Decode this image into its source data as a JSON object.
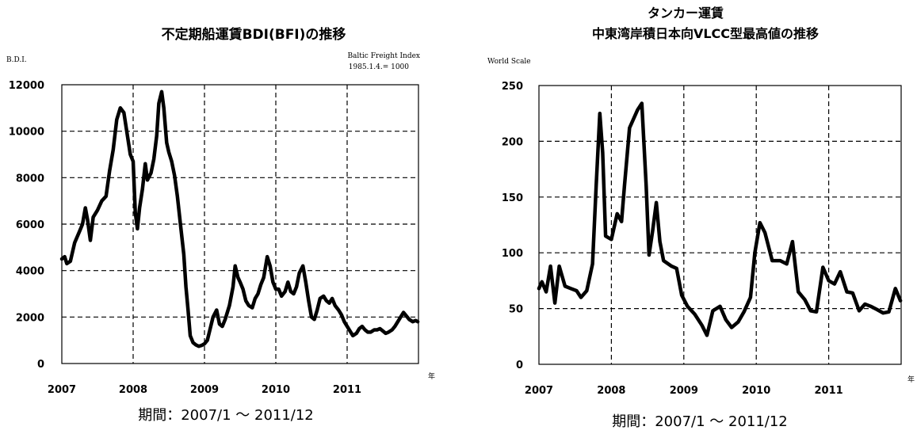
{
  "chart_data": [
    {
      "type": "line",
      "title": "不定期船運賃BDI(BFI)の推移",
      "ylabel": "B.D.I.",
      "annotation_line1": "Baltic Freight Index",
      "annotation_line2": "1985.1.4.= 1000",
      "x_unit_label": "年",
      "period_label": "期間：2007/1 ～ 2011/12",
      "xlim": [
        2007,
        2012
      ],
      "ylim": [
        0,
        12000
      ],
      "grid": "dashed",
      "x_ticks": [
        2007,
        2008,
        2009,
        2010,
        2011
      ],
      "x_tick_labels": [
        "2007",
        "2008",
        "2009",
        "2010",
        "2011"
      ],
      "y_ticks": [
        0,
        2000,
        4000,
        6000,
        8000,
        10000,
        12000
      ],
      "y_tick_labels": [
        "0",
        "2000",
        "4000",
        "6000",
        "8000",
        "10000",
        "12000"
      ],
      "series": [
        {
          "color": "#000000",
          "points": [
            [
              2007.0,
              4500
            ],
            [
              2007.04,
              4600
            ],
            [
              2007.07,
              4300
            ],
            [
              2007.12,
              4400
            ],
            [
              2007.18,
              5200
            ],
            [
              2007.25,
              5700
            ],
            [
              2007.29,
              6000
            ],
            [
              2007.33,
              6700
            ],
            [
              2007.36,
              6200
            ],
            [
              2007.4,
              5300
            ],
            [
              2007.44,
              6300
            ],
            [
              2007.5,
              6600
            ],
            [
              2007.56,
              7000
            ],
            [
              2007.62,
              7200
            ],
            [
              2007.67,
              8300
            ],
            [
              2007.72,
              9200
            ],
            [
              2007.77,
              10500
            ],
            [
              2007.82,
              11000
            ],
            [
              2007.87,
              10800
            ],
            [
              2007.92,
              9800
            ],
            [
              2007.96,
              9000
            ],
            [
              2008.0,
              8700
            ],
            [
              2008.03,
              6500
            ],
            [
              2008.06,
              5800
            ],
            [
              2008.09,
              6700
            ],
            [
              2008.13,
              7500
            ],
            [
              2008.17,
              8600
            ],
            [
              2008.2,
              7900
            ],
            [
              2008.25,
              8200
            ],
            [
              2008.29,
              8800
            ],
            [
              2008.33,
              9800
            ],
            [
              2008.36,
              11200
            ],
            [
              2008.4,
              11700
            ],
            [
              2008.43,
              11000
            ],
            [
              2008.47,
              9500
            ],
            [
              2008.5,
              9100
            ],
            [
              2008.54,
              8700
            ],
            [
              2008.58,
              8100
            ],
            [
              2008.62,
              7200
            ],
            [
              2008.67,
              5800
            ],
            [
              2008.71,
              4700
            ],
            [
              2008.74,
              3300
            ],
            [
              2008.77,
              2300
            ],
            [
              2008.8,
              1200
            ],
            [
              2008.84,
              900
            ],
            [
              2008.88,
              800
            ],
            [
              2008.92,
              740
            ],
            [
              2008.96,
              780
            ],
            [
              2009.0,
              850
            ],
            [
              2009.04,
              1000
            ],
            [
              2009.08,
              1500
            ],
            [
              2009.12,
              2000
            ],
            [
              2009.17,
              2300
            ],
            [
              2009.21,
              1700
            ],
            [
              2009.25,
              1600
            ],
            [
              2009.29,
              1900
            ],
            [
              2009.35,
              2500
            ],
            [
              2009.4,
              3300
            ],
            [
              2009.43,
              4200
            ],
            [
              2009.47,
              3700
            ],
            [
              2009.5,
              3500
            ],
            [
              2009.54,
              3200
            ],
            [
              2009.58,
              2700
            ],
            [
              2009.62,
              2500
            ],
            [
              2009.67,
              2400
            ],
            [
              2009.71,
              2800
            ],
            [
              2009.75,
              3000
            ],
            [
              2009.79,
              3400
            ],
            [
              2009.83,
              3700
            ],
            [
              2009.88,
              4600
            ],
            [
              2009.92,
              4200
            ],
            [
              2009.96,
              3500
            ],
            [
              2010.0,
              3200
            ],
            [
              2010.04,
              3200
            ],
            [
              2010.08,
              2900
            ],
            [
              2010.13,
              3100
            ],
            [
              2010.17,
              3500
            ],
            [
              2010.21,
              3100
            ],
            [
              2010.25,
              3000
            ],
            [
              2010.29,
              3300
            ],
            [
              2010.33,
              3900
            ],
            [
              2010.38,
              4200
            ],
            [
              2010.42,
              3500
            ],
            [
              2010.46,
              2700
            ],
            [
              2010.5,
              2000
            ],
            [
              2010.54,
              1900
            ],
            [
              2010.58,
              2300
            ],
            [
              2010.62,
              2800
            ],
            [
              2010.67,
              2900
            ],
            [
              2010.71,
              2700
            ],
            [
              2010.75,
              2600
            ],
            [
              2010.79,
              2800
            ],
            [
              2010.83,
              2500
            ],
            [
              2010.88,
              2300
            ],
            [
              2010.92,
              2100
            ],
            [
              2010.96,
              1800
            ],
            [
              2011.0,
              1600
            ],
            [
              2011.04,
              1400
            ],
            [
              2011.08,
              1200
            ],
            [
              2011.13,
              1300
            ],
            [
              2011.17,
              1500
            ],
            [
              2011.21,
              1600
            ],
            [
              2011.25,
              1450
            ],
            [
              2011.29,
              1350
            ],
            [
              2011.33,
              1350
            ],
            [
              2011.38,
              1450
            ],
            [
              2011.42,
              1450
            ],
            [
              2011.46,
              1500
            ],
            [
              2011.5,
              1400
            ],
            [
              2011.54,
              1300
            ],
            [
              2011.58,
              1350
            ],
            [
              2011.63,
              1450
            ],
            [
              2011.67,
              1600
            ],
            [
              2011.71,
              1800
            ],
            [
              2011.75,
              2000
            ],
            [
              2011.79,
              2200
            ],
            [
              2011.83,
              2050
            ],
            [
              2011.87,
              1900
            ],
            [
              2011.92,
              1800
            ],
            [
              2011.96,
              1850
            ],
            [
              2011.99,
              1800
            ]
          ]
        }
      ]
    },
    {
      "type": "line",
      "title_line1": "タンカー運賃",
      "title_line2": "中東湾岸積日本向VLCC型最高値の推移",
      "ylabel": "World Scale",
      "x_unit_label": "年",
      "period_label": "期間：2007/1 ～ 2011/12",
      "xlim": [
        2007,
        2012
      ],
      "ylim": [
        0,
        250
      ],
      "grid": "dashed",
      "x_ticks": [
        2007,
        2008,
        2009,
        2010,
        2011
      ],
      "x_tick_labels": [
        "2007",
        "2008",
        "2009",
        "2010",
        "2011"
      ],
      "y_ticks": [
        0,
        50,
        100,
        150,
        200,
        250
      ],
      "y_tick_labels": [
        "0",
        "50",
        "100",
        "150",
        "200",
        "250"
      ],
      "series": [
        {
          "color": "#000000",
          "points": [
            [
              2007.0,
              68
            ],
            [
              2007.04,
              74
            ],
            [
              2007.1,
              65
            ],
            [
              2007.16,
              88
            ],
            [
              2007.22,
              55
            ],
            [
              2007.28,
              88
            ],
            [
              2007.36,
              70
            ],
            [
              2007.44,
              68
            ],
            [
              2007.52,
              66
            ],
            [
              2007.58,
              60
            ],
            [
              2007.66,
              66
            ],
            [
              2007.74,
              90
            ],
            [
              2007.79,
              160
            ],
            [
              2007.84,
              225
            ],
            [
              2007.88,
              190
            ],
            [
              2007.92,
              115
            ],
            [
              2008.0,
              112
            ],
            [
              2008.08,
              135
            ],
            [
              2008.14,
              128
            ],
            [
              2008.18,
              160
            ],
            [
              2008.25,
              212
            ],
            [
              2008.36,
              228
            ],
            [
              2008.42,
              234
            ],
            [
              2008.48,
              160
            ],
            [
              2008.52,
              98
            ],
            [
              2008.57,
              120
            ],
            [
              2008.62,
              145
            ],
            [
              2008.67,
              110
            ],
            [
              2008.72,
              93
            ],
            [
              2008.83,
              88
            ],
            [
              2008.9,
              86
            ],
            [
              2008.97,
              62
            ],
            [
              2009.05,
              52
            ],
            [
              2009.15,
              45
            ],
            [
              2009.25,
              35
            ],
            [
              2009.32,
              26
            ],
            [
              2009.4,
              48
            ],
            [
              2009.5,
              52
            ],
            [
              2009.58,
              40
            ],
            [
              2009.66,
              33
            ],
            [
              2009.75,
              38
            ],
            [
              2009.83,
              47
            ],
            [
              2009.92,
              60
            ],
            [
              2009.98,
              100
            ],
            [
              2010.05,
              127
            ],
            [
              2010.12,
              118
            ],
            [
              2010.22,
              93
            ],
            [
              2010.33,
              93
            ],
            [
              2010.42,
              90
            ],
            [
              2010.5,
              110
            ],
            [
              2010.58,
              65
            ],
            [
              2010.67,
              58
            ],
            [
              2010.75,
              48
            ],
            [
              2010.83,
              47
            ],
            [
              2010.92,
              87
            ],
            [
              2011.0,
              75
            ],
            [
              2011.08,
              72
            ],
            [
              2011.16,
              83
            ],
            [
              2011.25,
              65
            ],
            [
              2011.33,
              64
            ],
            [
              2011.42,
              48
            ],
            [
              2011.5,
              54
            ],
            [
              2011.58,
              52
            ],
            [
              2011.67,
              49
            ],
            [
              2011.75,
              46
            ],
            [
              2011.83,
              47
            ],
            [
              2011.92,
              68
            ],
            [
              2011.99,
              57
            ]
          ]
        }
      ]
    }
  ]
}
